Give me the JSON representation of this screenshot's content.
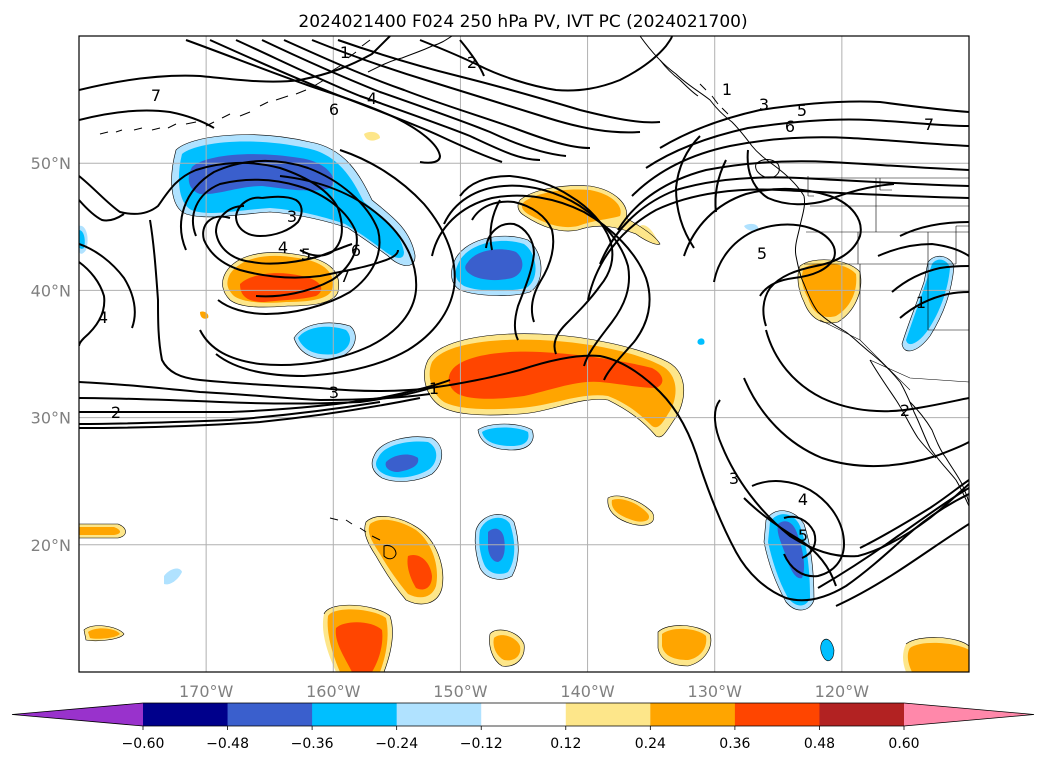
{
  "chart_data": {
    "type": "heatmap",
    "title": "2024021400 F024 250 hPa PV, IVT PC (2024021700)",
    "map": {
      "lon_range": [
        -180,
        -110
      ],
      "lat_range": [
        10,
        60
      ],
      "lon_ticks": [
        {
          "value": -170,
          "label": "170°W"
        },
        {
          "value": -160,
          "label": "160°W"
        },
        {
          "value": -150,
          "label": "150°W"
        },
        {
          "value": -140,
          "label": "140°W"
        },
        {
          "value": -130,
          "label": "130°W"
        },
        {
          "value": -120,
          "label": "120°W"
        }
      ],
      "lat_ticks": [
        {
          "value": 20,
          "label": "20°N"
        },
        {
          "value": 30,
          "label": "30°N"
        },
        {
          "value": 40,
          "label": "40°N"
        },
        {
          "value": 50,
          "label": "50°N"
        }
      ],
      "grid": true
    },
    "colorbar": {
      "levels": [
        -0.6,
        -0.48,
        -0.36,
        -0.24,
        -0.12,
        0.12,
        0.24,
        0.36,
        0.48,
        0.6
      ],
      "tick_labels": [
        "−0.60",
        "−0.48",
        "−0.36",
        "−0.24",
        "−0.12",
        "0.12",
        "0.24",
        "0.36",
        "0.48",
        "0.60"
      ],
      "colors": [
        "#9932cc",
        "#00008b",
        "#3a5fcd",
        "#00bfff",
        "#b0e2ff",
        "#ffffff",
        "#fde68a",
        "#ffa500",
        "#ff4500",
        "#b22222",
        "#ff88aa"
      ],
      "extend": "both"
    },
    "anomaly_patches": [
      {
        "lon": -165,
        "lat": 48.5,
        "value": -0.4
      },
      {
        "lon": -163,
        "lat": 41,
        "value": 0.4
      },
      {
        "lon": -159.5,
        "lat": 36.5,
        "value": -0.3
      },
      {
        "lon": -148,
        "lat": 41.5,
        "value": -0.42
      },
      {
        "lon": -141,
        "lat": 46,
        "value": 0.3
      },
      {
        "lon": -142,
        "lat": 33,
        "value": 0.42
      },
      {
        "lon": -146,
        "lat": 29,
        "value": -0.3
      },
      {
        "lon": -154,
        "lat": 26.5,
        "value": -0.38
      },
      {
        "lon": -156,
        "lat": 19,
        "value": 0.36
      },
      {
        "lon": -147,
        "lat": 20,
        "value": -0.38
      },
      {
        "lon": -136.5,
        "lat": 23,
        "value": 0.3
      },
      {
        "lon": -157,
        "lat": 12.5,
        "value": 0.4
      },
      {
        "lon": -145,
        "lat": 11.5,
        "value": 0.3
      },
      {
        "lon": -134.5,
        "lat": 12,
        "value": 0.28
      },
      {
        "lon": -124,
        "lat": 17.5,
        "value": -0.36
      },
      {
        "lon": -119.5,
        "lat": 40,
        "value": 0.3
      },
      {
        "lon": -113,
        "lat": 38.5,
        "value": -0.3
      },
      {
        "lon": -178,
        "lat": 21,
        "value": 0.28
      },
      {
        "lon": -176.5,
        "lat": 13,
        "value": 0.28
      },
      {
        "lon": -112.5,
        "lat": 11,
        "value": 0.3
      },
      {
        "lon": -169,
        "lat": 17.5,
        "value": -0.15
      },
      {
        "lon": -179.5,
        "lat": 44,
        "value": -0.28
      },
      {
        "lon": -166,
        "lat": 53,
        "value": -0.15
      }
    ],
    "contour_labels": [
      "7",
      "4",
      "6",
      "1",
      "2",
      "1",
      "3",
      "5",
      "6",
      "7",
      "3",
      "4",
      "5",
      "6",
      "7",
      "5",
      "4",
      "1",
      "1",
      "3",
      "2",
      "2",
      "3",
      "4",
      "5"
    ]
  }
}
